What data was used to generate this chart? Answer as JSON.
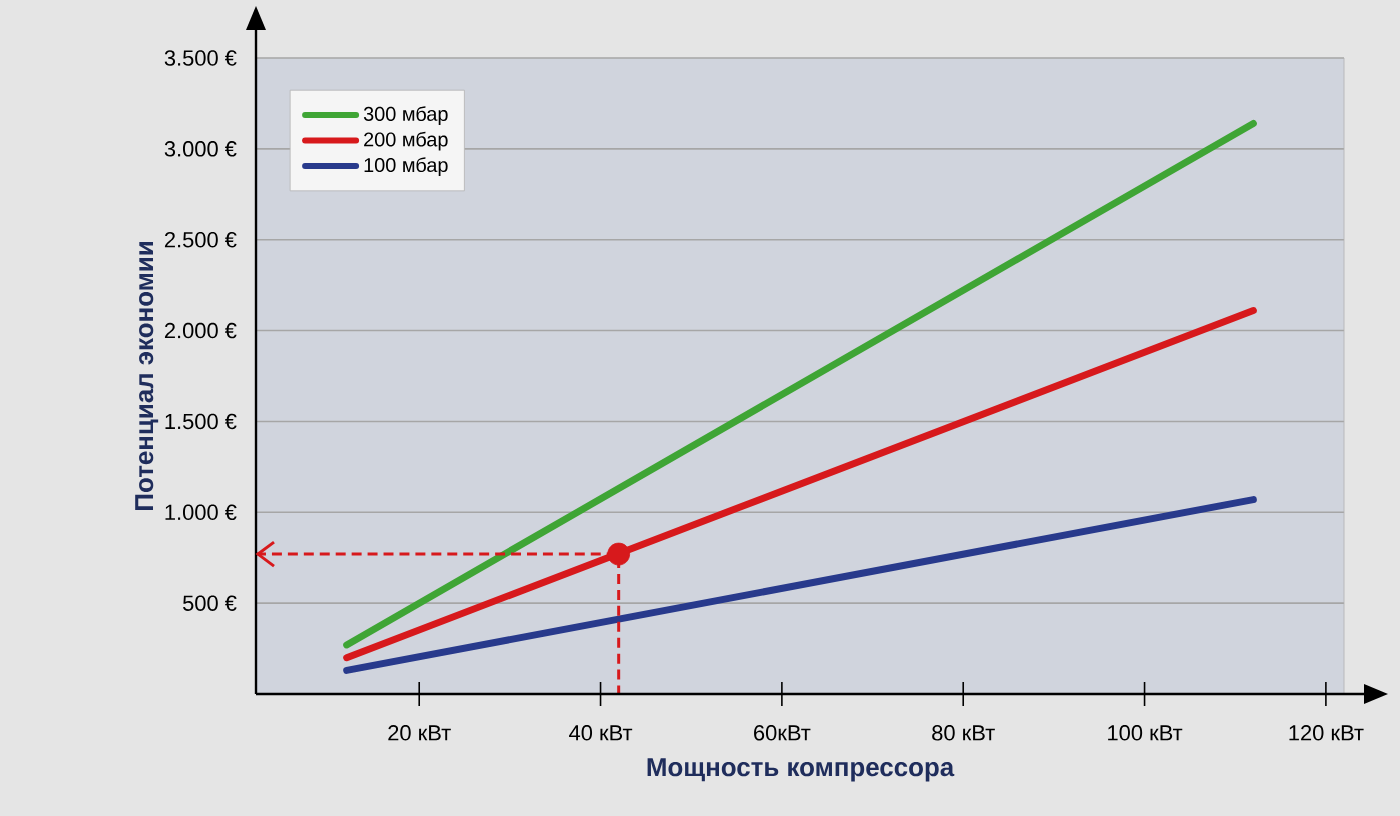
{
  "chart_data": {
    "type": "line",
    "xlabel": "Мощность компрессора",
    "ylabel": "Потенциал экономии",
    "xlim": [
      2,
      122
    ],
    "xticks": [
      {
        "value": 20,
        "label": "20 кВт"
      },
      {
        "value": 40,
        "label": "40 кВт"
      },
      {
        "value": 60,
        "label": "60кВт"
      },
      {
        "value": 80,
        "label": "80 кВт"
      },
      {
        "value": 100,
        "label": "100 кВт"
      },
      {
        "value": 120,
        "label": "120 кВт"
      }
    ],
    "ylim": [
      0,
      3500
    ],
    "yticks": [
      {
        "value": 500,
        "label": "500 €"
      },
      {
        "value": 1000,
        "label": "1.000 €"
      },
      {
        "value": 1500,
        "label": "1.500 €"
      },
      {
        "value": 2000,
        "label": "2.000 €"
      },
      {
        "value": 2500,
        "label": "2.500 €"
      },
      {
        "value": 3000,
        "label": "3.000 €"
      },
      {
        "value": 3500,
        "label": "3.500 €"
      }
    ],
    "grid": "y",
    "legend": "top left",
    "series": [
      {
        "name": "300 мбар",
        "color": "#3fa535",
        "x": [
          12,
          112
        ],
        "values": [
          270,
          3140
        ]
      },
      {
        "name": "200 мбар",
        "color": "#d7191c",
        "x": [
          12,
          112
        ],
        "values": [
          200,
          2110
        ]
      },
      {
        "name": "100 мбар",
        "color": "#283a8c",
        "x": [
          12,
          112
        ],
        "values": [
          130,
          1070
        ]
      },
      {
        "type": "line",
        "line_style": "dashed",
        "color": "#d7191c",
        "x": [
          2,
          42,
          42
        ],
        "values": [
          770,
          770,
          0
        ]
      },
      {
        "type": "scatter",
        "color": "#d7191c",
        "x": [
          42
        ],
        "values": [
          770
        ]
      }
    ]
  }
}
